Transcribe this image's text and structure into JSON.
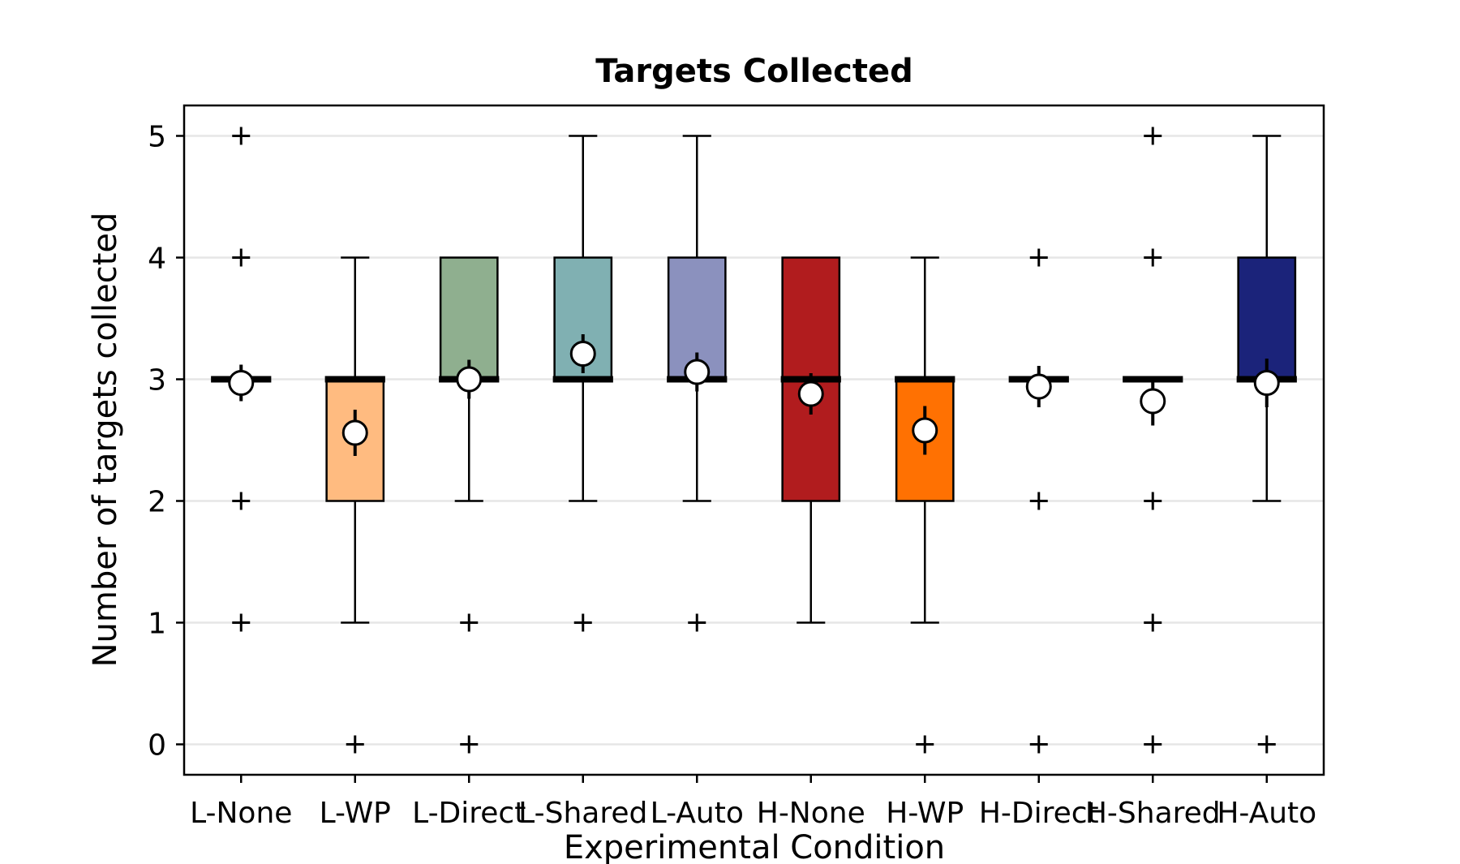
{
  "chart_data": {
    "type": "box",
    "title": "Targets Collected",
    "xlabel": "Experimental Condition",
    "ylabel": "Number of targets collected",
    "ylim": [
      -0.25,
      5.25
    ],
    "yticks": [
      0,
      1,
      2,
      3,
      4,
      5
    ],
    "grid": "horizontal",
    "categories": [
      "L-None",
      "L-WP",
      "L-Direct",
      "L-Shared",
      "L-Auto",
      "H-None",
      "H-WP",
      "H-Direct",
      "H-Shared",
      "H-Auto"
    ],
    "boxes": [
      {
        "category": "L-None",
        "color": "#ffffff",
        "q1": 3,
        "median": 3,
        "q3": 3,
        "whisker_low": 3,
        "whisker_high": 3,
        "mean": 2.97,
        "mean_err": 0.15,
        "outliers": [
          1,
          2,
          4,
          5
        ]
      },
      {
        "category": "L-WP",
        "color": "#ffbb80",
        "q1": 2,
        "median": 3,
        "q3": 3,
        "whisker_low": 1,
        "whisker_high": 4,
        "mean": 2.56,
        "mean_err": 0.19,
        "outliers": [
          0
        ]
      },
      {
        "category": "L-Direct",
        "color": "#8faf8f",
        "q1": 3,
        "median": 3,
        "q3": 4,
        "whisker_low": 2,
        "whisker_high": 4,
        "mean": 3.0,
        "mean_err": 0.16,
        "outliers": [
          0,
          1
        ]
      },
      {
        "category": "L-Shared",
        "color": "#80b0b2",
        "q1": 3,
        "median": 3,
        "q3": 4,
        "whisker_low": 2,
        "whisker_high": 5,
        "mean": 3.21,
        "mean_err": 0.16,
        "outliers": [
          1
        ]
      },
      {
        "category": "L-Auto",
        "color": "#8b91be",
        "q1": 3,
        "median": 3,
        "q3": 4,
        "whisker_low": 2,
        "whisker_high": 5,
        "mean": 3.06,
        "mean_err": 0.16,
        "outliers": [
          1
        ]
      },
      {
        "category": "H-None",
        "color": "#b11c1e",
        "q1": 2,
        "median": 3,
        "q3": 4,
        "whisker_low": 1,
        "whisker_high": 4,
        "mean": 2.88,
        "mean_err": 0.17,
        "outliers": []
      },
      {
        "category": "H-WP",
        "color": "#ff7102",
        "q1": 2,
        "median": 3,
        "q3": 3,
        "whisker_low": 1,
        "whisker_high": 4,
        "mean": 2.58,
        "mean_err": 0.2,
        "outliers": [
          0
        ]
      },
      {
        "category": "H-Direct",
        "color": "#ffffff",
        "q1": 3,
        "median": 3,
        "q3": 3,
        "whisker_low": 3,
        "whisker_high": 3,
        "mean": 2.94,
        "mean_err": 0.17,
        "outliers": [
          0,
          2,
          4
        ]
      },
      {
        "category": "H-Shared",
        "color": "#ffffff",
        "q1": 3,
        "median": 3,
        "q3": 3,
        "whisker_low": 3,
        "whisker_high": 3,
        "mean": 2.82,
        "mean_err": 0.2,
        "outliers": [
          0,
          1,
          2,
          4,
          5
        ]
      },
      {
        "category": "H-Auto",
        "color": "#1b237a",
        "q1": 3,
        "median": 3,
        "q3": 4,
        "whisker_low": 2,
        "whisker_high": 5,
        "mean": 2.97,
        "mean_err": 0.2,
        "outliers": [
          0
        ]
      }
    ]
  }
}
